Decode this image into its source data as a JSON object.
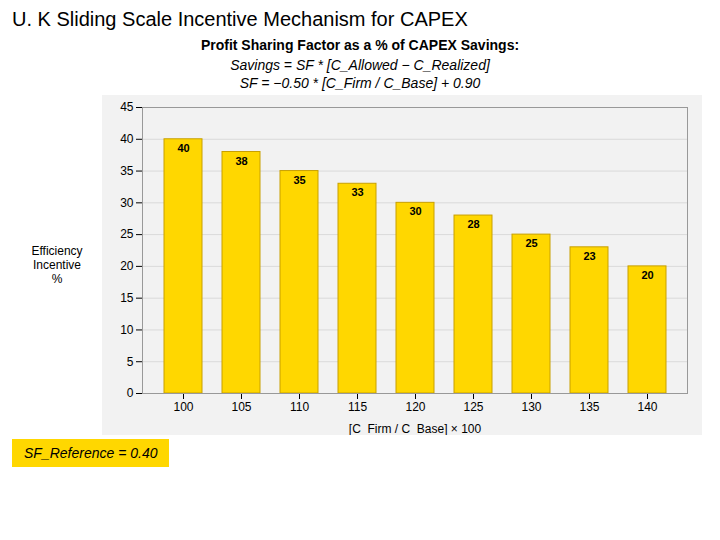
{
  "chart_data": {
    "type": "bar",
    "title": "U. K Sliding Scale Incentive Mechanism for CAPEX",
    "subtitle": "Profit Sharing Factor as a % of CAPEX Savings:",
    "xlabel": "[C_Firm / C_Base] × 100",
    "ylabel": "Efficiency Incentive\n%",
    "categories": [
      100,
      105,
      110,
      115,
      120,
      125,
      130,
      135,
      140
    ],
    "values": [
      40,
      38,
      35,
      33,
      30,
      28,
      25,
      23,
      20
    ],
    "color": "#FFD700",
    "ylim": [
      0,
      45
    ],
    "yticks": [
      0,
      5,
      10,
      15,
      20,
      25,
      30,
      35,
      40,
      45
    ],
    "grid": true,
    "data_labels": true,
    "annotations": [
      "Savings = SF * [C_Allowed − C_Realized]",
      "SF = −0.50 * [C_Firm / C_Base] + 0.90",
      "SF_Reference = 0.40"
    ]
  }
}
